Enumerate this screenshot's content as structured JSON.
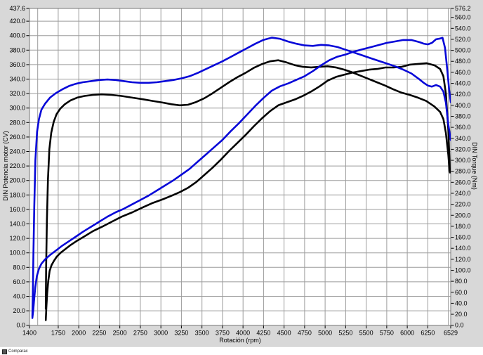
{
  "chart_data": {
    "type": "line",
    "title": "",
    "xlabel": "Rotación (rpm)",
    "ylabel_left": "DIN Potencia motor (CV)",
    "ylabel_right": "DIN Torque (Nm)",
    "x_range": [
      1400,
      6529
    ],
    "y_left_range": [
      0,
      437.6
    ],
    "y_right_range": [
      0,
      576.2
    ],
    "grid": true,
    "legend_position": "none",
    "x_tick_labels": [
      "1400",
      "1750",
      "2000",
      "2250",
      "2500",
      "2750",
      "3000",
      "3250",
      "3500",
      "3750",
      "4000",
      "4250",
      "4500",
      "4750",
      "5000",
      "5250",
      "5500",
      "5750",
      "6000",
      "6250",
      "6529"
    ],
    "x_tick_values": [
      1400,
      1750,
      2000,
      2250,
      2500,
      2750,
      3000,
      3250,
      3500,
      3750,
      4000,
      4250,
      4500,
      4750,
      5000,
      5250,
      5500,
      5750,
      6000,
      6250,
      6529
    ],
    "x_grid_start": 1500,
    "x_grid_step": 250,
    "y_left_tick_labels": [
      "0.0",
      "20.0",
      "40.0",
      "60.0",
      "80.0",
      "100.0",
      "120.0",
      "140.0",
      "160.0",
      "180.0",
      "200.0",
      "220.0",
      "240.0",
      "260.0",
      "280.0",
      "300.0",
      "320.0",
      "340.0",
      "360.0",
      "380.0",
      "400.0",
      "420.0",
      "437.6"
    ],
    "y_left_tick_values": [
      0,
      20,
      40,
      60,
      80,
      100,
      120,
      140,
      160,
      180,
      200,
      220,
      240,
      260,
      280,
      300,
      320,
      340,
      360,
      380,
      400,
      420,
      437.6
    ],
    "y_right_tick_labels": [
      "0.0",
      "20.0",
      "40.0",
      "60.0",
      "80.0",
      "100.0",
      "120.0",
      "140.0",
      "160.0",
      "180.0",
      "200.0",
      "220.0",
      "240.0",
      "260.0",
      "280.0",
      "300.0",
      "320.0",
      "340.0",
      "360.0",
      "380.0",
      "400.0",
      "420.0",
      "440.0",
      "460.0",
      "480.0",
      "500.0",
      "520.0",
      "540.0",
      "560.0",
      "576.2"
    ],
    "y_right_tick_values": [
      0,
      20,
      40,
      60,
      80,
      100,
      120,
      140,
      160,
      180,
      200,
      220,
      240,
      260,
      280,
      300,
      320,
      340,
      360,
      380,
      400,
      420,
      440,
      460,
      480,
      500,
      520,
      540,
      560,
      576.2
    ],
    "colors": {
      "run_blue": "#0808d8",
      "run_black": "#030303",
      "grid": "#9b9b9b",
      "border": "#787878",
      "plot_bg": "#ffffff",
      "chart_bg": "#d8d8d8"
    },
    "series": [
      {
        "name": "torque-black",
        "axis": "right",
        "unit": "Nm",
        "color_key": "run_black",
        "points": [
          [
            1598,
            30
          ],
          [
            1603,
            105
          ],
          [
            1612,
            190
          ],
          [
            1625,
            265
          ],
          [
            1642,
            320
          ],
          [
            1665,
            350
          ],
          [
            1695,
            370
          ],
          [
            1730,
            384
          ],
          [
            1775,
            394
          ],
          [
            1830,
            402
          ],
          [
            1900,
            409
          ],
          [
            1980,
            414
          ],
          [
            2070,
            417
          ],
          [
            2170,
            419
          ],
          [
            2280,
            420
          ],
          [
            2400,
            419
          ],
          [
            2520,
            417
          ],
          [
            2650,
            414
          ],
          [
            2780,
            411
          ],
          [
            2900,
            408
          ],
          [
            3020,
            405
          ],
          [
            3130,
            402
          ],
          [
            3230,
            400
          ],
          [
            3330,
            401
          ],
          [
            3430,
            406
          ],
          [
            3530,
            413
          ],
          [
            3630,
            422
          ],
          [
            3730,
            432
          ],
          [
            3830,
            442
          ],
          [
            3930,
            451
          ],
          [
            4030,
            459
          ],
          [
            4130,
            468
          ],
          [
            4230,
            475
          ],
          [
            4330,
            480
          ],
          [
            4430,
            482
          ],
          [
            4530,
            478
          ],
          [
            4630,
            473
          ],
          [
            4730,
            470
          ],
          [
            4830,
            469
          ],
          [
            4930,
            470
          ],
          [
            5030,
            471
          ],
          [
            5130,
            469
          ],
          [
            5230,
            465
          ],
          [
            5330,
            460
          ],
          [
            5430,
            454
          ],
          [
            5530,
            448
          ],
          [
            5630,
            442
          ],
          [
            5730,
            436
          ],
          [
            5830,
            429
          ],
          [
            5930,
            423
          ],
          [
            6030,
            419
          ],
          [
            6130,
            414
          ],
          [
            6230,
            408
          ],
          [
            6330,
            398
          ],
          [
            6400,
            388
          ],
          [
            6440,
            375
          ],
          [
            6470,
            350
          ],
          [
            6500,
            310
          ],
          [
            6515,
            280
          ]
        ]
      },
      {
        "name": "power-black",
        "axis": "left",
        "unit": "CV",
        "color_key": "run_black",
        "points": [
          [
            1598,
            7
          ],
          [
            1605,
            24
          ],
          [
            1615,
            44
          ],
          [
            1628,
            61
          ],
          [
            1645,
            75
          ],
          [
            1668,
            83
          ],
          [
            1698,
            89
          ],
          [
            1733,
            95
          ],
          [
            1778,
            100
          ],
          [
            1833,
            105
          ],
          [
            1903,
            111
          ],
          [
            1983,
            117
          ],
          [
            2073,
            123
          ],
          [
            2173,
            130
          ],
          [
            2283,
            136
          ],
          [
            2403,
            143
          ],
          [
            2523,
            150
          ],
          [
            2653,
            156
          ],
          [
            2783,
            163
          ],
          [
            2903,
            169
          ],
          [
            3023,
            174
          ],
          [
            3133,
            179
          ],
          [
            3233,
            184
          ],
          [
            3333,
            190
          ],
          [
            3433,
            198
          ],
          [
            3533,
            208
          ],
          [
            3633,
            218
          ],
          [
            3733,
            229
          ],
          [
            3833,
            241
          ],
          [
            3933,
            252
          ],
          [
            4033,
            263
          ],
          [
            4133,
            275
          ],
          [
            4233,
            286
          ],
          [
            4333,
            296
          ],
          [
            4433,
            304
          ],
          [
            4533,
            308
          ],
          [
            4633,
            312
          ],
          [
            4733,
            317
          ],
          [
            4833,
            323
          ],
          [
            4933,
            330
          ],
          [
            5033,
            338
          ],
          [
            5133,
            343
          ],
          [
            5233,
            346
          ],
          [
            5333,
            349
          ],
          [
            5433,
            351
          ],
          [
            5533,
            353
          ],
          [
            5633,
            354
          ],
          [
            5733,
            356
          ],
          [
            5833,
            356
          ],
          [
            5933,
            357
          ],
          [
            6033,
            360
          ],
          [
            6133,
            361
          ],
          [
            6233,
            362
          ],
          [
            6333,
            359
          ],
          [
            6400,
            354
          ],
          [
            6440,
            344
          ],
          [
            6470,
            320
          ],
          [
            6500,
            270
          ],
          [
            6520,
            211
          ]
        ]
      },
      {
        "name": "torque-blue",
        "axis": "right",
        "unit": "Nm",
        "color_key": "run_blue",
        "points": [
          [
            1435,
            16
          ],
          [
            1441,
            60
          ],
          [
            1448,
            130
          ],
          [
            1458,
            215
          ],
          [
            1472,
            300
          ],
          [
            1492,
            352
          ],
          [
            1515,
            375
          ],
          [
            1545,
            392
          ],
          [
            1590,
            403
          ],
          [
            1650,
            414
          ],
          [
            1720,
            422
          ],
          [
            1800,
            429
          ],
          [
            1880,
            435
          ],
          [
            1960,
            439
          ],
          [
            2050,
            442
          ],
          [
            2150,
            444
          ],
          [
            2250,
            446
          ],
          [
            2350,
            447
          ],
          [
            2450,
            446
          ],
          [
            2550,
            444
          ],
          [
            2650,
            442
          ],
          [
            2750,
            441
          ],
          [
            2850,
            441
          ],
          [
            2950,
            442
          ],
          [
            3050,
            444
          ],
          [
            3150,
            446
          ],
          [
            3250,
            449
          ],
          [
            3350,
            453
          ],
          [
            3450,
            459
          ],
          [
            3550,
            466
          ],
          [
            3650,
            473
          ],
          [
            3750,
            480
          ],
          [
            3850,
            488
          ],
          [
            3950,
            496
          ],
          [
            4050,
            504
          ],
          [
            4150,
            512
          ],
          [
            4250,
            519
          ],
          [
            4350,
            523
          ],
          [
            4450,
            521
          ],
          [
            4550,
            516
          ],
          [
            4650,
            512
          ],
          [
            4750,
            509
          ],
          [
            4850,
            508
          ],
          [
            4950,
            510
          ],
          [
            5050,
            509
          ],
          [
            5150,
            506
          ],
          [
            5250,
            501
          ],
          [
            5350,
            496
          ],
          [
            5450,
            491
          ],
          [
            5550,
            486
          ],
          [
            5650,
            481
          ],
          [
            5750,
            476
          ],
          [
            5850,
            471
          ],
          [
            5950,
            465
          ],
          [
            6050,
            458
          ],
          [
            6150,
            447
          ],
          [
            6200,
            441
          ],
          [
            6250,
            436
          ],
          [
            6300,
            434
          ],
          [
            6350,
            437
          ],
          [
            6400,
            434
          ],
          [
            6440,
            425
          ],
          [
            6470,
            405
          ],
          [
            6500,
            365
          ],
          [
            6529,
            337
          ]
        ]
      },
      {
        "name": "power-blue",
        "axis": "left",
        "unit": "CV",
        "color_key": "run_blue",
        "points": [
          [
            1435,
            10
          ],
          [
            1445,
            20
          ],
          [
            1455,
            33
          ],
          [
            1470,
            52
          ],
          [
            1490,
            68
          ],
          [
            1515,
            78
          ],
          [
            1545,
            85
          ],
          [
            1590,
            91
          ],
          [
            1650,
            97
          ],
          [
            1720,
            103
          ],
          [
            1800,
            110
          ],
          [
            1880,
            116
          ],
          [
            1960,
            122
          ],
          [
            2050,
            129
          ],
          [
            2150,
            136
          ],
          [
            2250,
            143
          ],
          [
            2350,
            150
          ],
          [
            2450,
            156
          ],
          [
            2550,
            161
          ],
          [
            2650,
            167
          ],
          [
            2750,
            173
          ],
          [
            2850,
            179
          ],
          [
            2950,
            186
          ],
          [
            3050,
            193
          ],
          [
            3150,
            200
          ],
          [
            3250,
            208
          ],
          [
            3350,
            216
          ],
          [
            3450,
            226
          ],
          [
            3550,
            236
          ],
          [
            3650,
            246
          ],
          [
            3750,
            256
          ],
          [
            3850,
            268
          ],
          [
            3950,
            279
          ],
          [
            4050,
            291
          ],
          [
            4150,
            303
          ],
          [
            4250,
            314
          ],
          [
            4350,
            324
          ],
          [
            4450,
            330
          ],
          [
            4550,
            334
          ],
          [
            4650,
            339
          ],
          [
            4750,
            344
          ],
          [
            4850,
            351
          ],
          [
            4950,
            359
          ],
          [
            5050,
            366
          ],
          [
            5150,
            371
          ],
          [
            5250,
            374
          ],
          [
            5350,
            378
          ],
          [
            5450,
            381
          ],
          [
            5550,
            384
          ],
          [
            5650,
            387
          ],
          [
            5750,
            390
          ],
          [
            5850,
            392
          ],
          [
            5950,
            394
          ],
          [
            6050,
            394
          ],
          [
            6150,
            391
          ],
          [
            6200,
            389
          ],
          [
            6250,
            388
          ],
          [
            6300,
            390
          ],
          [
            6350,
            395
          ],
          [
            6400,
            396
          ],
          [
            6430,
            397
          ],
          [
            6460,
            383
          ],
          [
            6490,
            350
          ],
          [
            6510,
            325
          ],
          [
            6529,
            308
          ]
        ]
      }
    ]
  },
  "footer": {
    "caption": "Comparac"
  }
}
